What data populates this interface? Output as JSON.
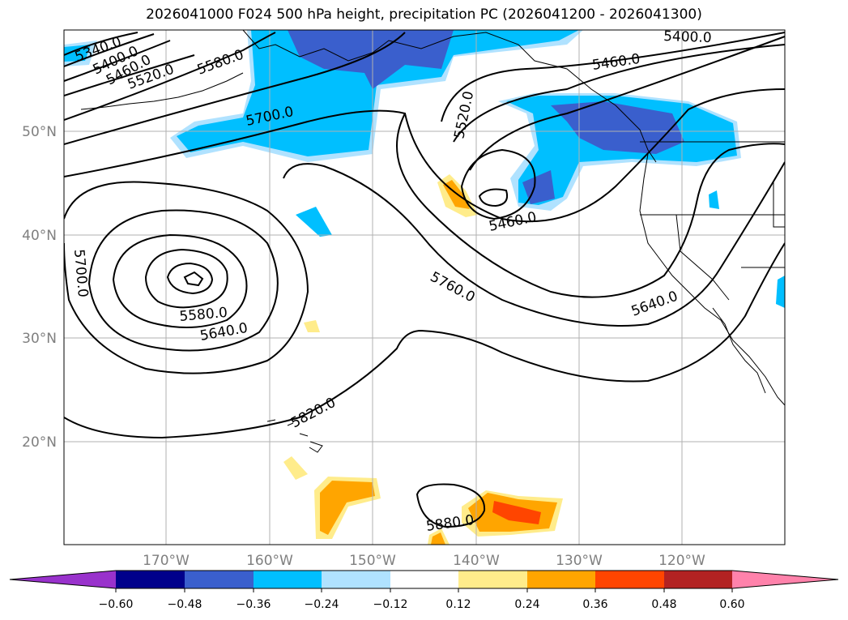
{
  "title": "2026041000 F024 500 hPa height, precipitation PC (2026041200 - 2026041300)",
  "map": {
    "lat_labels": [
      "50°N",
      "40°N",
      "30°N",
      "20°N"
    ],
    "lon_labels": [
      "170°W",
      "160°W",
      "150°W",
      "140°W",
      "130°W",
      "120°W"
    ],
    "contour_labels": [
      "5340.0",
      "5400.0",
      "5460.0",
      "5520.0",
      "5580.0",
      "5700.0",
      "5520.0",
      "5460.0",
      "5400.0",
      "5460.0",
      "5700.0",
      "5580.0",
      "5640.0",
      "5760.0",
      "5640.0",
      "5820.0",
      "5880.0"
    ]
  },
  "colorbar": {
    "ticks": [
      "−0.60",
      "−0.48",
      "−0.36",
      "−0.24",
      "−0.12",
      "0.12",
      "0.24",
      "0.36",
      "0.48",
      "0.60"
    ],
    "colors": [
      "#9932cc",
      "#00008b",
      "#3a5fcd",
      "#00bfff",
      "#b0e2ff",
      "#ffffff",
      "#ffec8b",
      "#ffa500",
      "#ff4500",
      "#b22222",
      "#ff82ab",
      "#ff82ab"
    ]
  }
}
